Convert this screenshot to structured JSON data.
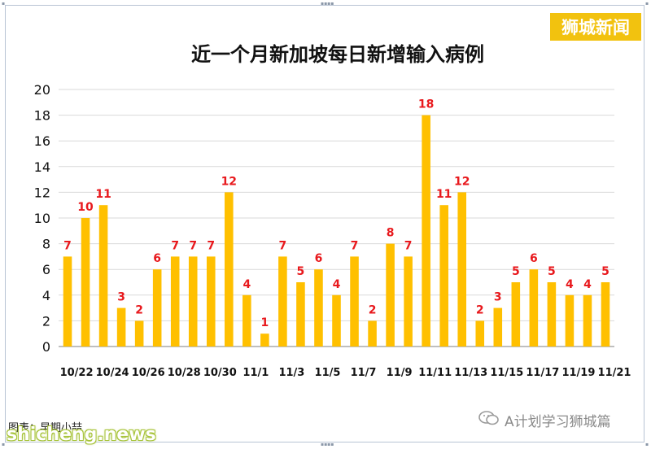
{
  "brand": {
    "name": "狮城新闻"
  },
  "footer": {
    "caption": "图表：早期小喆",
    "site_watermark": "shicheng.news",
    "wechat_account": "A计划学习狮城篇"
  },
  "colors": {
    "bar": "#ffc000",
    "label": "#e8191d",
    "grid": "#d9d9d9",
    "axis": "#7f7f7f"
  },
  "chart_data": {
    "type": "bar",
    "title": "近一个月新加坡每日新增输入病例",
    "ylim": [
      0,
      20
    ],
    "y_ticks": [
      0,
      2,
      4,
      6,
      8,
      10,
      12,
      14,
      16,
      18,
      20
    ],
    "grid": true,
    "x_tick_labels": [
      "10/22",
      "10/24",
      "10/26",
      "10/28",
      "10/30",
      "11/1",
      "11/3",
      "11/5",
      "11/7",
      "11/9",
      "11/11",
      "11/13",
      "11/15",
      "11/17",
      "11/19",
      "11/21"
    ],
    "categories": [
      "10/22",
      "10/23",
      "10/24",
      "10/25",
      "10/26",
      "10/27",
      "10/28",
      "10/29",
      "10/30",
      "10/31",
      "11/1",
      "11/2",
      "11/3",
      "11/4",
      "11/5",
      "11/6",
      "11/7",
      "11/8",
      "11/9",
      "11/10",
      "11/11",
      "11/12",
      "11/13",
      "11/14",
      "11/15",
      "11/16",
      "11/17",
      "11/18",
      "11/19",
      "11/20",
      "11/21"
    ],
    "values": [
      7,
      10,
      11,
      3,
      2,
      6,
      7,
      7,
      7,
      12,
      4,
      1,
      7,
      5,
      6,
      4,
      7,
      2,
      8,
      7,
      18,
      11,
      12,
      2,
      3,
      5,
      6,
      5,
      4,
      4,
      5
    ]
  }
}
